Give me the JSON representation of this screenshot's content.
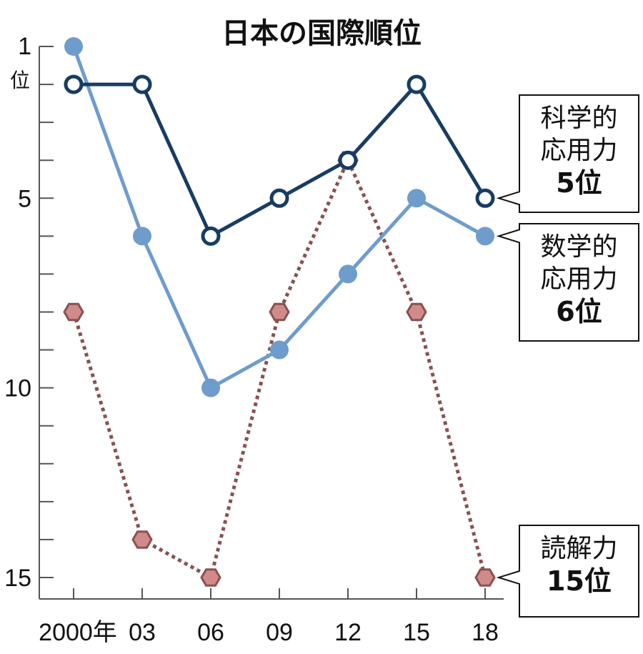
{
  "chart_data": {
    "type": "line",
    "title": "日本の国際順位",
    "categories": [
      "2000年",
      "03",
      "06",
      "09",
      "12",
      "15",
      "18"
    ],
    "y_axis": {
      "range": [
        1,
        15
      ],
      "reversed": true,
      "tick_labels": [
        "1",
        "5",
        "10",
        "15"
      ],
      "unit": "位"
    },
    "series": [
      {
        "name_lines": [
          "科学的",
          "応用力"
        ],
        "rank_label": "5位",
        "values": [
          2,
          2,
          6,
          5,
          4,
          2,
          5
        ],
        "color": "#183c62",
        "marker": "open-circle"
      },
      {
        "name_lines": [
          "数学的",
          "応用力"
        ],
        "rank_label": "6位",
        "values": [
          1,
          6,
          10,
          9,
          7,
          5,
          6
        ],
        "color": "#6e9ccc",
        "marker": "filled-circle"
      },
      {
        "name_lines": [
          "読解力"
        ],
        "rank_label": "15位",
        "values": [
          8,
          14,
          15,
          8,
          4,
          8,
          15
        ],
        "color": "#8a5050",
        "marker": "hexagon",
        "fill": "#d08a8a",
        "dashed": true
      }
    ]
  }
}
